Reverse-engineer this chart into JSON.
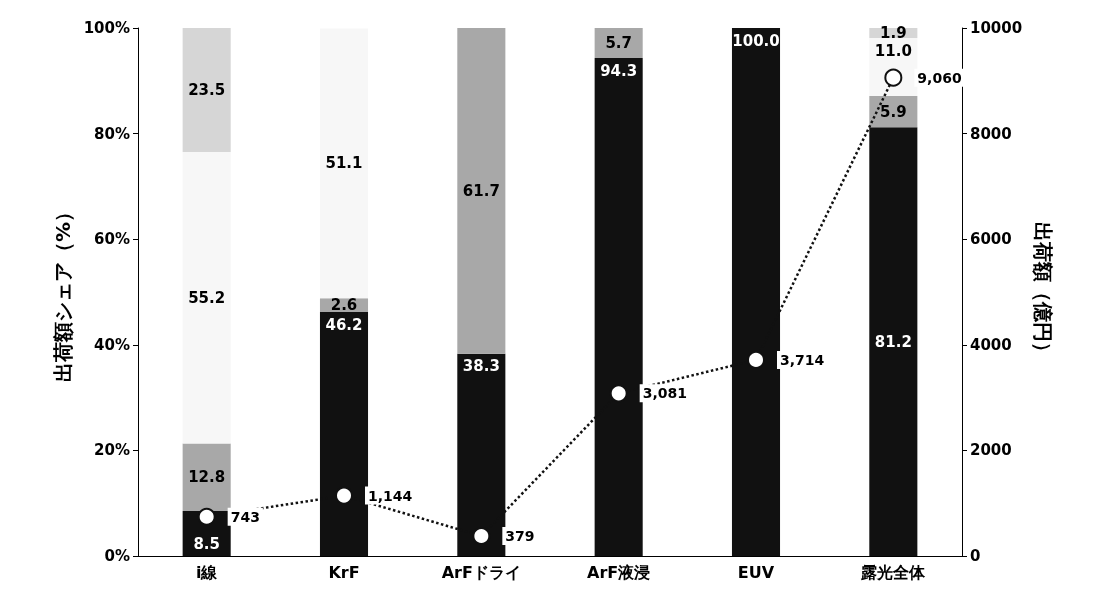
{
  "chart_data": {
    "type": "bar",
    "stacked": true,
    "ylabel": "出荷額シェア（%）",
    "y2label": "出荷額（億円）",
    "categories": [
      "i線",
      "KrF",
      "ArFドライ",
      "ArF液浸",
      "EUV",
      "露光全体"
    ],
    "ylim": [
      0,
      100
    ],
    "yticks": [
      {
        "value": 0,
        "label": "0%"
      },
      {
        "value": 20,
        "label": "20%"
      },
      {
        "value": 40,
        "label": "40%"
      },
      {
        "value": 60,
        "label": "60%"
      },
      {
        "value": 80,
        "label": "80%"
      },
      {
        "value": 100,
        "label": "100%"
      }
    ],
    "y2lim": [
      0,
      10000
    ],
    "y2ticks": [
      0,
      2000,
      4000,
      6000,
      8000,
      10000
    ],
    "series": [
      {
        "color": "#111111",
        "values": [
          8.5,
          46.2,
          38.3,
          94.3,
          100,
          81.2
        ],
        "value_labels": [
          "8.5",
          "46.2",
          "38.3",
          "94.3",
          "100.0",
          "81.2"
        ]
      },
      {
        "color": "#a8a8a8",
        "values": [
          12.8,
          2.6,
          61.7,
          5.7,
          0,
          5.9
        ],
        "value_labels": [
          "12.8",
          "2.6",
          "61.7",
          "5.7",
          null,
          "5.9"
        ]
      },
      {
        "color": "#f7f7f7",
        "values": [
          55.2,
          51.1,
          0,
          0,
          0,
          11.0
        ],
        "value_labels": [
          "55.2",
          "51.1",
          null,
          null,
          null,
          "11.0"
        ]
      },
      {
        "color": "#d6d6d6",
        "values": [
          23.5,
          0,
          0,
          0,
          0,
          1.9
        ],
        "value_labels": [
          "23.5",
          null,
          null,
          null,
          null,
          "1.9"
        ]
      },
      {
        "type": "line",
        "axis": "y2",
        "color": "#111111",
        "marker": "circle",
        "line_style": "dotted",
        "values": [
          743,
          1144,
          379,
          3081,
          3714,
          9060
        ],
        "value_labels": [
          "743",
          "1,144",
          "379",
          "3,081",
          "3,714",
          "9,060"
        ]
      }
    ],
    "grid": false
  }
}
